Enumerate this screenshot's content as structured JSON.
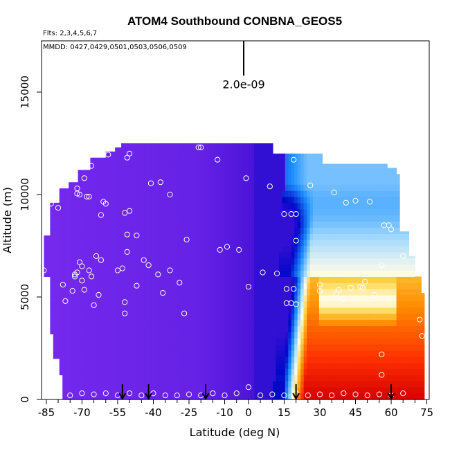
{
  "chart_data": {
    "type": "heatmap",
    "title": "ATOM4 Southbound CONBNA_GEOS5",
    "subtitle_flights": "Flts: 2,3,4,5,6,7",
    "subtitle_dates": "MMDD: 0427,0429,0501,0503,0506,0509",
    "xlabel": "Latitude (deg N)",
    "ylabel": "Altitude (m)",
    "xlim": [
      -87,
      76
    ],
    "ylim": [
      0,
      17500
    ],
    "x_ticks": [
      -85,
      -70,
      -55,
      -40,
      -25,
      -10,
      0,
      15,
      30,
      45,
      60,
      75
    ],
    "x_tick_labels": [
      "-85",
      "-70",
      "-55",
      "-40",
      "-25",
      "-10",
      "0",
      "15",
      "30",
      "45",
      "60",
      "75"
    ],
    "x_minor_ticks": [
      -80,
      -75,
      -65,
      -60,
      -50,
      -45,
      -35,
      -30,
      -20,
      -15,
      -5,
      5,
      10,
      20,
      25,
      35,
      40,
      50,
      55,
      65,
      70
    ],
    "y_ticks": [
      0,
      5000,
      10000,
      15000
    ],
    "y_tick_labels": [
      "0",
      "5000",
      "10000",
      "15000"
    ],
    "scale_bar_label": "2.0e-09",
    "scale_bar_lat": -2,
    "scale_bar_alt": [
      15800,
      17500
    ],
    "profile_arrow_lats": [
      -53,
      -42,
      -18,
      20,
      60
    ],
    "colors": {
      "purple": "#7b2cf0",
      "indigo": "#4a14d8",
      "deep_blue": "#0008c8",
      "blue": "#1e90ff",
      "light_blue": "#a8dcff",
      "pale": "#fffbe8",
      "yellow": "#ffd84a",
      "orange": "#ff8a00",
      "red_orange": "#ff3000",
      "red": "#d40000"
    },
    "obs_points": [
      [
        -86,
        6300
      ],
      [
        -85,
        9600
      ],
      [
        -83,
        9550
      ],
      [
        -78,
        5600
      ],
      [
        -77,
        4800
      ],
      [
        -80,
        9350
      ],
      [
        -74,
        5300
      ],
      [
        -73,
        6100
      ],
      [
        -73,
        6000
      ],
      [
        -72,
        10300
      ],
      [
        -72,
        10050
      ],
      [
        -71,
        10000
      ],
      [
        -72,
        6200
      ],
      [
        -71,
        6700
      ],
      [
        -70,
        6500
      ],
      [
        -70,
        5800
      ],
      [
        -69,
        5350
      ],
      [
        -68,
        9900
      ],
      [
        -67,
        9900
      ],
      [
        -67,
        6300
      ],
      [
        -66,
        6000
      ],
      [
        -65,
        4600
      ],
      [
        -64,
        7000
      ],
      [
        -63,
        5100
      ],
      [
        -62,
        6800
      ],
      [
        -61,
        9650
      ],
      [
        -60,
        9550
      ],
      [
        -62,
        9000
      ],
      [
        -69,
        10800
      ],
      [
        -66,
        11400
      ],
      [
        -59,
        11950
      ],
      [
        -55,
        6300
      ],
      [
        -53,
        6400
      ],
      [
        -52,
        4750
      ],
      [
        -52,
        4200
      ],
      [
        -51,
        11800
      ],
      [
        -50,
        12000
      ],
      [
        -52,
        9100
      ],
      [
        -50,
        9200
      ],
      [
        -51,
        8050
      ],
      [
        -47,
        8000
      ],
      [
        -51,
        7200
      ],
      [
        -47,
        5550
      ],
      [
        -44,
        6800
      ],
      [
        -42,
        6550
      ],
      [
        -41,
        10550
      ],
      [
        -37,
        10600
      ],
      [
        -38,
        6100
      ],
      [
        -36,
        5200
      ],
      [
        -33,
        6300
      ],
      [
        -33,
        10000
      ],
      [
        -29,
        5700
      ],
      [
        -26,
        7800
      ],
      [
        -27,
        4200
      ],
      [
        -21,
        12300
      ],
      [
        -20,
        12300
      ],
      [
        -13,
        11700
      ],
      [
        -12,
        7300
      ],
      [
        -9,
        7450
      ],
      [
        -4,
        7300
      ],
      [
        -1,
        10800
      ],
      [
        0,
        5500
      ],
      [
        6,
        6200
      ],
      [
        9,
        10400
      ],
      [
        12,
        6150
      ],
      [
        15,
        9050
      ],
      [
        18,
        9050
      ],
      [
        20,
        9050
      ],
      [
        20,
        7750
      ],
      [
        16,
        4700
      ],
      [
        16,
        5400
      ],
      [
        19,
        5400
      ],
      [
        18,
        4700
      ],
      [
        20,
        4650
      ],
      [
        19,
        11700
      ],
      [
        26,
        10450
      ],
      [
        30,
        5600
      ],
      [
        30,
        5300
      ],
      [
        36,
        10100
      ],
      [
        37,
        5150
      ],
      [
        38,
        5350
      ],
      [
        40,
        4900
      ],
      [
        41,
        9600
      ],
      [
        43,
        5450
      ],
      [
        45,
        9700
      ],
      [
        47,
        5500
      ],
      [
        48,
        5450
      ],
      [
        49,
        5750
      ],
      [
        51,
        9650
      ],
      [
        53,
        5100
      ],
      [
        56,
        6550
      ],
      [
        57,
        8500
      ],
      [
        59,
        8500
      ],
      [
        60,
        8300
      ],
      [
        61,
        11650
      ],
      [
        65,
        7000
      ],
      [
        72,
        3900
      ],
      [
        73,
        3100
      ],
      [
        56,
        2200
      ],
      [
        56,
        1200
      ],
      [
        -85,
        300
      ],
      [
        -75,
        200
      ],
      [
        -70,
        300
      ],
      [
        -65,
        250
      ],
      [
        -60,
        300
      ],
      [
        -55,
        200
      ],
      [
        -50,
        300
      ],
      [
        -45,
        200
      ],
      [
        -40,
        300
      ],
      [
        -35,
        200
      ],
      [
        -30,
        200
      ],
      [
        -25,
        250
      ],
      [
        -20,
        200
      ],
      [
        -15,
        300
      ],
      [
        -10,
        200
      ],
      [
        -5,
        300
      ],
      [
        0,
        600
      ],
      [
        5,
        200
      ],
      [
        10,
        250
      ],
      [
        15,
        200
      ],
      [
        20,
        300
      ],
      [
        25,
        200
      ],
      [
        30,
        250
      ],
      [
        35,
        200
      ],
      [
        40,
        300
      ],
      [
        45,
        250
      ],
      [
        50,
        200
      ],
      [
        55,
        250
      ],
      [
        60,
        200
      ],
      [
        65,
        300
      ]
    ]
  }
}
